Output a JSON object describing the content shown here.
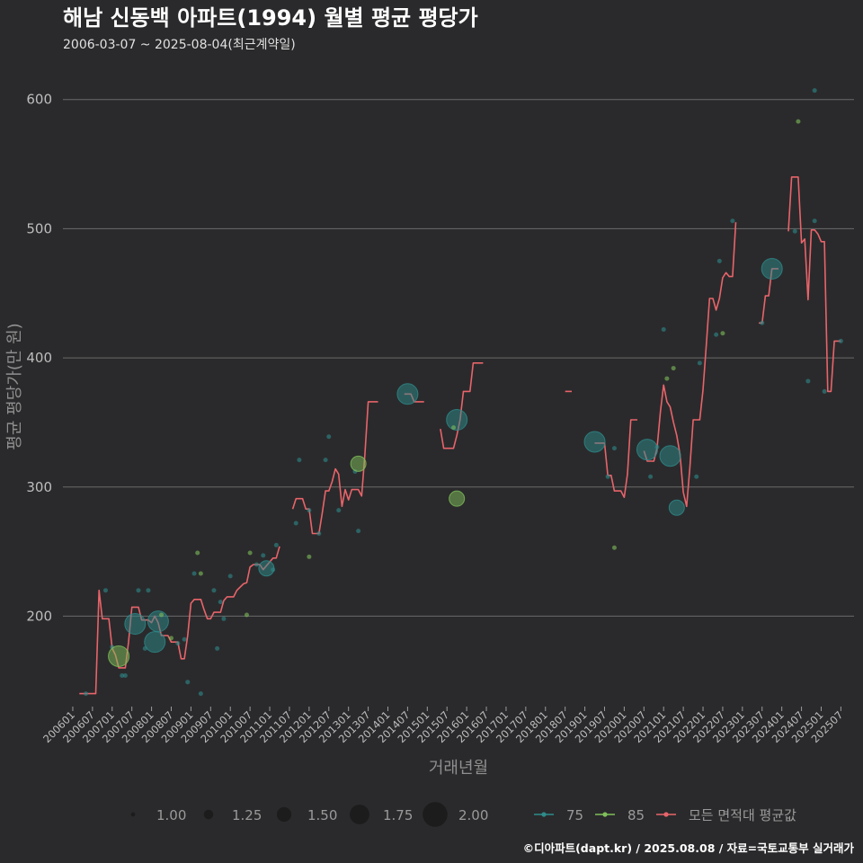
{
  "colors": {
    "background": "#2a2a2c",
    "grid": "#6a6a6a",
    "series_75": "#2e8b8b",
    "series_85": "#7fbf5a",
    "series_avg": "#e8646a"
  },
  "chart_data": {
    "type": "line",
    "title": "해남 신동백 아파트(1994) 월별 평균 평당가",
    "subtitle": "2006-03-07 ~ 2025-08-04(최근계약일)",
    "xlabel": "거래년월",
    "ylabel": "평균 평당가(만 원)",
    "caption": "©디아파트(dapt.kr) / 2025.08.08 / 자료=국토교통부 실거래가",
    "x_range_months": [
      "200601",
      "202508"
    ],
    "ylim": [
      130,
      620
    ],
    "yticks": [
      200,
      300,
      400,
      500,
      600
    ],
    "xticks": [
      "200601",
      "200607",
      "200701",
      "200707",
      "200801",
      "200807",
      "200901",
      "200907",
      "201001",
      "201007",
      "201101",
      "201107",
      "201201",
      "201207",
      "201301",
      "201307",
      "201401",
      "201407",
      "201501",
      "201507",
      "201601",
      "201607",
      "201701",
      "201707",
      "201801",
      "201807",
      "201901",
      "201907",
      "202001",
      "202007",
      "202101",
      "202107",
      "202201",
      "202207",
      "202301",
      "202307",
      "202401",
      "202407",
      "202501",
      "202507"
    ],
    "legend": {
      "size_title": "",
      "sizes": [
        {
          "label": "1.00",
          "value": 1.0
        },
        {
          "label": "1.25",
          "value": 1.25
        },
        {
          "label": "1.50",
          "value": 1.5
        },
        {
          "label": "1.75",
          "value": 1.75
        },
        {
          "label": "2.00",
          "value": 2.0
        }
      ],
      "series": [
        {
          "label": "75",
          "key": "75"
        },
        {
          "label": "85",
          "key": "85"
        },
        {
          "label": "모든 면적대 평균값",
          "key": "avg"
        }
      ]
    },
    "avg_line_segments": [
      [
        [
          "200603",
          140
        ],
        [
          "200608",
          140
        ],
        [
          "200609",
          220
        ],
        [
          "200610",
          198
        ],
        [
          "200612",
          198
        ],
        [
          "200701",
          175
        ],
        [
          "200702",
          170
        ],
        [
          "200703",
          160
        ],
        [
          "200705",
          160
        ],
        [
          "200706",
          180
        ],
        [
          "200707",
          207
        ],
        [
          "200709",
          207
        ],
        [
          "200710",
          197
        ],
        [
          "200712",
          197
        ],
        [
          "200801",
          195
        ],
        [
          "200802",
          200
        ],
        [
          "200803",
          195
        ],
        [
          "200804",
          185
        ],
        [
          "200806",
          185
        ],
        [
          "200807",
          180
        ],
        [
          "200809",
          180
        ],
        [
          "200810",
          167
        ],
        [
          "200811",
          167
        ],
        [
          "200812",
          185
        ],
        [
          "200901",
          210
        ],
        [
          "200902",
          213
        ],
        [
          "200904",
          213
        ],
        [
          "200905",
          205
        ],
        [
          "200906",
          198
        ],
        [
          "200907",
          198
        ],
        [
          "200908",
          203
        ],
        [
          "200910",
          203
        ],
        [
          "200911",
          212
        ],
        [
          "200912",
          215
        ],
        [
          "201002",
          215
        ],
        [
          "201003",
          220
        ],
        [
          "201005",
          225
        ],
        [
          "201006",
          226
        ],
        [
          "201007",
          238
        ],
        [
          "201008",
          240
        ],
        [
          "201010",
          240
        ],
        [
          "201011",
          236
        ],
        [
          "201101",
          242
        ],
        [
          "201102",
          245
        ],
        [
          "201103",
          245
        ],
        [
          "201104",
          254
        ]
      ],
      [
        [
          "201108",
          283
        ],
        [
          "201109",
          291
        ],
        [
          "201111",
          291
        ],
        [
          "201112",
          283
        ],
        [
          "201201",
          283
        ],
        [
          "201202",
          264
        ],
        [
          "201204",
          264
        ],
        [
          "201205",
          280
        ],
        [
          "201206",
          297
        ],
        [
          "201207",
          297
        ],
        [
          "201208",
          304
        ],
        [
          "201209",
          314
        ],
        [
          "201210",
          310
        ],
        [
          "201211",
          285
        ],
        [
          "201212",
          298
        ],
        [
          "201301",
          290
        ],
        [
          "201302",
          298
        ],
        [
          "201304",
          298
        ],
        [
          "201305",
          293
        ],
        [
          "201306",
          325
        ],
        [
          "201307",
          366
        ],
        [
          "201310",
          366
        ]
      ],
      [
        [
          "201406",
          372
        ],
        [
          "201408",
          372
        ],
        [
          "201409",
          366
        ],
        [
          "201412",
          366
        ]
      ],
      [
        [
          "201505",
          345
        ],
        [
          "201506",
          330
        ],
        [
          "201509",
          330
        ],
        [
          "201510",
          340
        ],
        [
          "201511",
          352
        ],
        [
          "201512",
          374
        ],
        [
          "201602",
          374
        ],
        [
          "201603",
          396
        ],
        [
          "201606",
          396
        ]
      ],
      [
        [
          "201807",
          374
        ],
        [
          "201809",
          374
        ]
      ],
      [
        [
          "201904",
          334
        ],
        [
          "201907",
          334
        ],
        [
          "201908",
          309
        ],
        [
          "201909",
          309
        ],
        [
          "201910",
          297
        ],
        [
          "201912",
          297
        ],
        [
          "202001",
          292
        ],
        [
          "202002",
          310
        ],
        [
          "202003",
          352
        ],
        [
          "202005",
          352
        ]
      ],
      [
        [
          "202007",
          328
        ],
        [
          "202008",
          320
        ],
        [
          "202010",
          320
        ],
        [
          "202011",
          330
        ],
        [
          "202012",
          358
        ],
        [
          "202101",
          379
        ],
        [
          "202102",
          366
        ],
        [
          "202103",
          362
        ],
        [
          "202104",
          350
        ],
        [
          "202105",
          340
        ],
        [
          "202106",
          325
        ],
        [
          "202107",
          296
        ],
        [
          "202108",
          285
        ],
        [
          "202109",
          315
        ],
        [
          "202110",
          352
        ],
        [
          "202112",
          352
        ],
        [
          "202201",
          375
        ],
        [
          "202202",
          410
        ],
        [
          "202203",
          446
        ],
        [
          "202204",
          446
        ],
        [
          "202205",
          437
        ],
        [
          "202206",
          446
        ],
        [
          "202207",
          462
        ],
        [
          "202208",
          466
        ],
        [
          "202209",
          463
        ],
        [
          "202210",
          463
        ],
        [
          "202211",
          505
        ]
      ],
      [
        [
          "202306",
          427
        ],
        [
          "202307",
          427
        ],
        [
          "202308",
          448
        ],
        [
          "202309",
          448
        ],
        [
          "202310",
          469
        ],
        [
          "202312",
          469
        ]
      ],
      [
        [
          "202403",
          498
        ],
        [
          "202404",
          540
        ],
        [
          "202406",
          540
        ],
        [
          "202407",
          489
        ],
        [
          "202408",
          492
        ],
        [
          "202409",
          445
        ],
        [
          "202410",
          499
        ],
        [
          "202411",
          499
        ],
        [
          "202412",
          496
        ],
        [
          "202501",
          490
        ],
        [
          "202502",
          490
        ],
        [
          "202503",
          374
        ],
        [
          "202504",
          374
        ],
        [
          "202505",
          413
        ],
        [
          "202507",
          413
        ]
      ]
    ],
    "points": [
      {
        "s": "75",
        "m": "200605",
        "y": 140,
        "w": 1.0
      },
      {
        "s": "75",
        "m": "200611",
        "y": 220,
        "w": 1.0
      },
      {
        "s": "75",
        "m": "200701",
        "y": 176,
        "w": 1.0
      },
      {
        "s": "85",
        "m": "200703",
        "y": 169,
        "w": 1.75
      },
      {
        "s": "75",
        "m": "200704",
        "y": 154,
        "w": 1.0
      },
      {
        "s": "75",
        "m": "200705",
        "y": 154,
        "w": 1.0
      },
      {
        "s": "75",
        "m": "200708",
        "y": 194,
        "w": 1.75
      },
      {
        "s": "75",
        "m": "200709",
        "y": 220,
        "w": 1.0
      },
      {
        "s": "75",
        "m": "200711",
        "y": 175,
        "w": 1.0
      },
      {
        "s": "75",
        "m": "200712",
        "y": 220,
        "w": 1.0
      },
      {
        "s": "75",
        "m": "200802",
        "y": 180,
        "w": 1.75
      },
      {
        "s": "75",
        "m": "200803",
        "y": 196,
        "w": 1.75
      },
      {
        "s": "85",
        "m": "200804",
        "y": 201,
        "w": 1.0
      },
      {
        "s": "85",
        "m": "200807",
        "y": 183,
        "w": 1.0
      },
      {
        "s": "75",
        "m": "200809",
        "y": 179,
        "w": 1.0
      },
      {
        "s": "75",
        "m": "200811",
        "y": 182,
        "w": 1.0
      },
      {
        "s": "75",
        "m": "200812",
        "y": 149,
        "w": 1.0
      },
      {
        "s": "75",
        "m": "200902",
        "y": 233,
        "w": 1.0
      },
      {
        "s": "85",
        "m": "200903",
        "y": 249,
        "w": 1.0
      },
      {
        "s": "75",
        "m": "200904",
        "y": 140,
        "w": 1.0
      },
      {
        "s": "85",
        "m": "200904",
        "y": 233,
        "w": 1.0
      },
      {
        "s": "75",
        "m": "200908",
        "y": 220,
        "w": 1.0
      },
      {
        "s": "75",
        "m": "200909",
        "y": 175,
        "w": 1.0
      },
      {
        "s": "75",
        "m": "200910",
        "y": 211,
        "w": 1.0
      },
      {
        "s": "75",
        "m": "200911",
        "y": 198,
        "w": 1.0
      },
      {
        "s": "75",
        "m": "201001",
        "y": 231,
        "w": 1.0
      },
      {
        "s": "85",
        "m": "201006",
        "y": 201,
        "w": 1.0
      },
      {
        "s": "85",
        "m": "201007",
        "y": 249,
        "w": 1.0
      },
      {
        "s": "75",
        "m": "201009",
        "y": 240,
        "w": 1.0
      },
      {
        "s": "75",
        "m": "201011",
        "y": 247,
        "w": 1.0
      },
      {
        "s": "75",
        "m": "201012",
        "y": 237,
        "w": 1.5
      },
      {
        "s": "75",
        "m": "201102",
        "y": 236,
        "w": 1.0
      },
      {
        "s": "75",
        "m": "201103",
        "y": 255,
        "w": 1.0
      },
      {
        "s": "75",
        "m": "201110",
        "y": 321,
        "w": 1.0
      },
      {
        "s": "75",
        "m": "201109",
        "y": 272,
        "w": 1.0
      },
      {
        "s": "75",
        "m": "201201",
        "y": 282,
        "w": 1.0
      },
      {
        "s": "85",
        "m": "201201",
        "y": 246,
        "w": 1.0
      },
      {
        "s": "75",
        "m": "201204",
        "y": 264,
        "w": 1.0
      },
      {
        "s": "75",
        "m": "201206",
        "y": 321,
        "w": 1.0
      },
      {
        "s": "75",
        "m": "201207",
        "y": 339,
        "w": 1.0
      },
      {
        "s": "75",
        "m": "201210",
        "y": 282,
        "w": 1.0
      },
      {
        "s": "75",
        "m": "201303",
        "y": 312,
        "w": 1.0
      },
      {
        "s": "75",
        "m": "201304",
        "y": 266,
        "w": 1.0
      },
      {
        "s": "85",
        "m": "201304",
        "y": 318,
        "w": 1.5
      },
      {
        "s": "75",
        "m": "201407",
        "y": 372,
        "w": 1.75
      },
      {
        "s": "75",
        "m": "201510",
        "y": 352,
        "w": 1.75
      },
      {
        "s": "85",
        "m": "201509",
        "y": 346,
        "w": 1.0
      },
      {
        "s": "85",
        "m": "201510",
        "y": 291,
        "w": 1.5
      },
      {
        "s": "75",
        "m": "201904",
        "y": 335,
        "w": 1.75
      },
      {
        "s": "75",
        "m": "201908",
        "y": 308,
        "w": 1.0
      },
      {
        "s": "85",
        "m": "201910",
        "y": 253,
        "w": 1.0
      },
      {
        "s": "75",
        "m": "201910",
        "y": 330,
        "w": 1.0
      },
      {
        "s": "75",
        "m": "202008",
        "y": 329,
        "w": 1.75
      },
      {
        "s": "75",
        "m": "202009",
        "y": 308,
        "w": 1.0
      },
      {
        "s": "75",
        "m": "202011",
        "y": 331,
        "w": 1.0
      },
      {
        "s": "75",
        "m": "202101",
        "y": 422,
        "w": 1.0
      },
      {
        "s": "85",
        "m": "202102",
        "y": 384,
        "w": 1.0
      },
      {
        "s": "85",
        "m": "202104",
        "y": 392,
        "w": 1.0
      },
      {
        "s": "75",
        "m": "202103",
        "y": 324,
        "w": 1.75
      },
      {
        "s": "75",
        "m": "202105",
        "y": 284,
        "w": 1.5
      },
      {
        "s": "75",
        "m": "202111",
        "y": 308,
        "w": 1.0
      },
      {
        "s": "75",
        "m": "202112",
        "y": 396,
        "w": 1.0
      },
      {
        "s": "75",
        "m": "202205",
        "y": 418,
        "w": 1.0
      },
      {
        "s": "75",
        "m": "202206",
        "y": 475,
        "w": 1.0
      },
      {
        "s": "85",
        "m": "202207",
        "y": 419,
        "w": 1.0
      },
      {
        "s": "75",
        "m": "202210",
        "y": 506,
        "w": 1.0
      },
      {
        "s": "75",
        "m": "202307",
        "y": 427,
        "w": 1.0
      },
      {
        "s": "75",
        "m": "202310",
        "y": 469,
        "w": 1.75
      },
      {
        "s": "75",
        "m": "202405",
        "y": 498,
        "w": 1.0
      },
      {
        "s": "85",
        "m": "202406",
        "y": 583,
        "w": 1.0
      },
      {
        "s": "75",
        "m": "202409",
        "y": 382,
        "w": 1.0
      },
      {
        "s": "75",
        "m": "202411",
        "y": 506,
        "w": 1.0
      },
      {
        "s": "75",
        "m": "202411",
        "y": 607,
        "w": 1.0
      },
      {
        "s": "75",
        "m": "202502",
        "y": 374,
        "w": 1.0
      },
      {
        "s": "75",
        "m": "202507",
        "y": 413,
        "w": 1.0
      }
    ]
  }
}
